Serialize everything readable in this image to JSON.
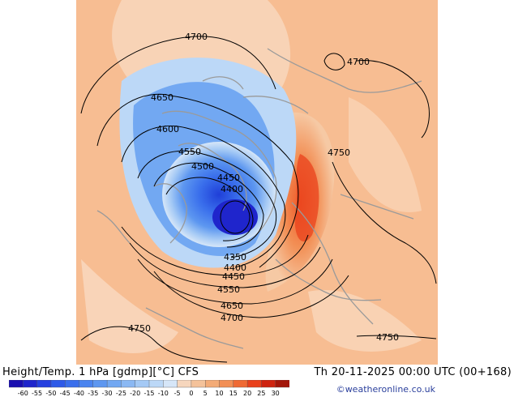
{
  "header": {
    "title": "Height/Temp. 1 hPa [gdmp][°C] CFS",
    "datetime": "Th 20-11-2025 00:00 UTC (00+168)",
    "credit": "©weatheronline.co.uk"
  },
  "map": {
    "contour_labels": [
      "4700",
      "4700",
      "4650",
      "4600",
      "4550",
      "4500",
      "4450",
      "4400",
      "4350",
      "4400",
      "4450",
      "4550",
      "4650",
      "4700",
      "4750",
      "4750",
      "4750"
    ]
  },
  "legend": {
    "ticks": [
      "-60",
      "-55",
      "-50",
      "-45",
      "-40",
      "-35",
      "-30",
      "-25",
      "-20",
      "-15",
      "-10",
      "-5",
      "0",
      "5",
      "10",
      "15",
      "20",
      "25",
      "30"
    ],
    "colors": [
      "#1a0fb0",
      "#1f25cc",
      "#2540e0",
      "#2e5ae8",
      "#3a6fec",
      "#4a84ef",
      "#5d97f0",
      "#72a8f2",
      "#8ab8f3",
      "#a4c9f5",
      "#bcd8f7",
      "#d6e6f8",
      "#f6d6bd",
      "#f4c29a",
      "#f3ab77",
      "#f28f55",
      "#ef6a34",
      "#e9411c",
      "#cf2410",
      "#a3160a"
    ]
  }
}
